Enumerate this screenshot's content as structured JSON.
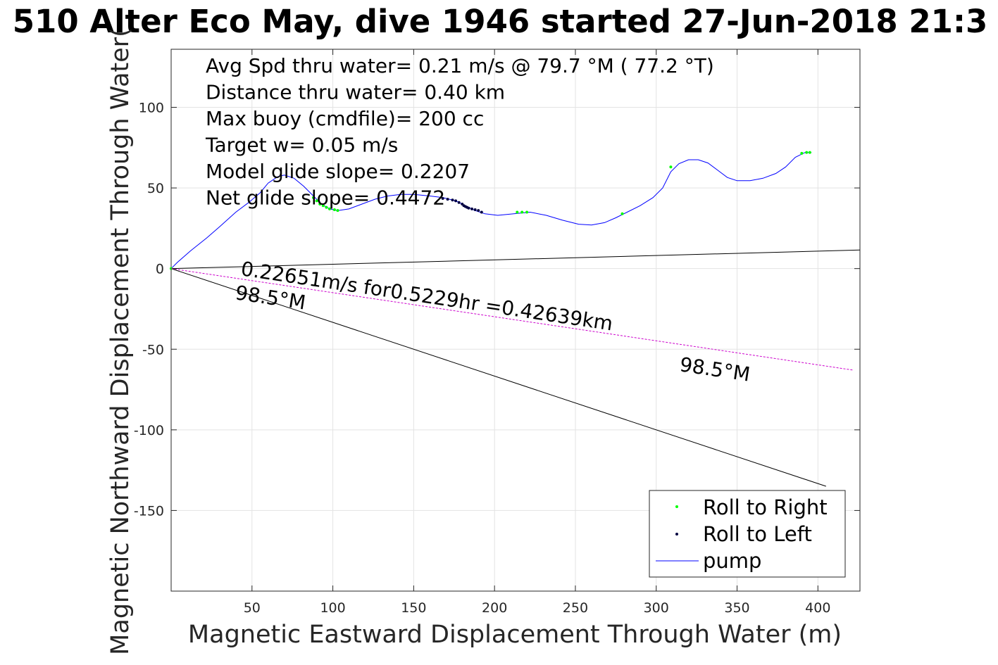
{
  "chart_data": {
    "type": "line",
    "title": "510 Alter Eco May, dive 1946 started 27-Jun-2018 21:3",
    "xlabel": "Magnetic Eastward Displacement Through Water (m)",
    "ylabel": "Magnetic Northward Displacement Through Water(",
    "xlim": [
      0,
      426
    ],
    "ylim": [
      -200,
      136
    ],
    "xticks": [
      50,
      100,
      150,
      200,
      250,
      300,
      350,
      400
    ],
    "yticks": [
      -150,
      -100,
      -50,
      0,
      50,
      100
    ],
    "grid": true,
    "legend_position": "bottom-right",
    "annotations": [
      "Avg Spd thru water=  0.21 m/s @  79.7 °M ( 77.2 °T)",
      "Distance thru water=  0.40 km",
      "Max buoy (cmdfile)= 200 cc",
      "Target w= 0.05 m/s",
      "Model glide slope= 0.2207",
      "Net glide slope= 0.4472"
    ],
    "line_labels": {
      "current": "0.22651m/s for0.5229hr =0.42639km",
      "heading_start": "98.5°M",
      "heading_end": "98.5°M"
    },
    "series": [
      {
        "name": "pump",
        "color": "#0000ff",
        "style": "line",
        "points": [
          [
            0,
            0
          ],
          [
            4,
            4
          ],
          [
            12,
            11
          ],
          [
            22,
            19
          ],
          [
            30,
            26
          ],
          [
            40,
            35
          ],
          [
            48,
            41
          ],
          [
            55,
            47
          ],
          [
            60,
            53
          ],
          [
            66,
            57
          ],
          [
            70,
            58
          ],
          [
            76,
            56
          ],
          [
            82,
            51
          ],
          [
            88,
            45
          ],
          [
            93,
            40
          ],
          [
            98,
            37
          ],
          [
            103,
            36
          ],
          [
            110,
            37
          ],
          [
            118,
            40
          ],
          [
            126,
            43
          ],
          [
            134,
            45
          ],
          [
            142,
            46
          ],
          [
            150,
            46
          ],
          [
            160,
            45
          ],
          [
            168,
            44
          ],
          [
            176,
            42
          ],
          [
            182,
            39
          ],
          [
            188,
            36
          ],
          [
            194,
            34
          ],
          [
            202,
            33
          ],
          [
            212,
            34
          ],
          [
            222,
            35
          ],
          [
            232,
            33
          ],
          [
            242,
            30
          ],
          [
            252,
            27.5
          ],
          [
            260,
            27
          ],
          [
            268,
            28.5
          ],
          [
            275,
            31.5
          ],
          [
            282,
            35
          ],
          [
            290,
            39
          ],
          [
            298,
            44
          ],
          [
            304,
            50
          ],
          [
            309,
            60
          ],
          [
            314,
            65
          ],
          [
            320,
            67.5
          ],
          [
            326,
            67.5
          ],
          [
            332,
            65.5
          ],
          [
            338,
            61
          ],
          [
            344,
            56.5
          ],
          [
            350,
            54.5
          ],
          [
            358,
            54.5
          ],
          [
            366,
            56
          ],
          [
            374,
            59
          ],
          [
            380,
            63
          ],
          [
            386,
            69
          ],
          [
            392,
            72
          ],
          [
            396,
            72
          ]
        ]
      },
      {
        "name": "Roll to Right",
        "color": "#00ff00",
        "style": "dots",
        "points": [
          [
            0,
            0
          ],
          [
            88,
            44
          ],
          [
            90,
            42
          ],
          [
            92,
            40
          ],
          [
            94,
            39
          ],
          [
            96,
            38
          ],
          [
            98,
            37
          ],
          [
            101,
            36.5
          ],
          [
            103,
            36
          ],
          [
            214,
            35
          ],
          [
            217,
            35
          ],
          [
            220,
            35
          ],
          [
            279,
            34
          ],
          [
            309,
            63
          ],
          [
            390,
            71.5
          ],
          [
            393,
            72
          ],
          [
            395,
            72
          ]
        ]
      },
      {
        "name": "Roll to Left",
        "color": "#000040",
        "style": "dots",
        "points": [
          [
            168,
            43.5
          ],
          [
            171,
            43
          ],
          [
            174,
            42.5
          ],
          [
            176,
            42
          ],
          [
            178,
            41
          ],
          [
            180,
            40
          ],
          [
            181,
            39
          ],
          [
            182,
            38.5
          ],
          [
            183,
            38
          ],
          [
            184,
            37.5
          ],
          [
            186,
            37
          ],
          [
            188,
            36.5
          ],
          [
            190,
            36
          ],
          [
            192,
            35
          ]
        ]
      },
      {
        "name": "",
        "color": "#000000",
        "style": "line",
        "points": [
          [
            0,
            0
          ],
          [
            426,
            11.5
          ]
        ]
      },
      {
        "name": "",
        "color": "#000000",
        "style": "line",
        "points": [
          [
            0,
            0
          ],
          [
            405,
            -135
          ]
        ]
      },
      {
        "name": "",
        "color": "#cc00cc",
        "style": "dashed",
        "points": [
          [
            0,
            0
          ],
          [
            422,
            -63
          ]
        ]
      }
    ],
    "legend": [
      "Roll to Right",
      "Roll to Left",
      "pump"
    ]
  }
}
